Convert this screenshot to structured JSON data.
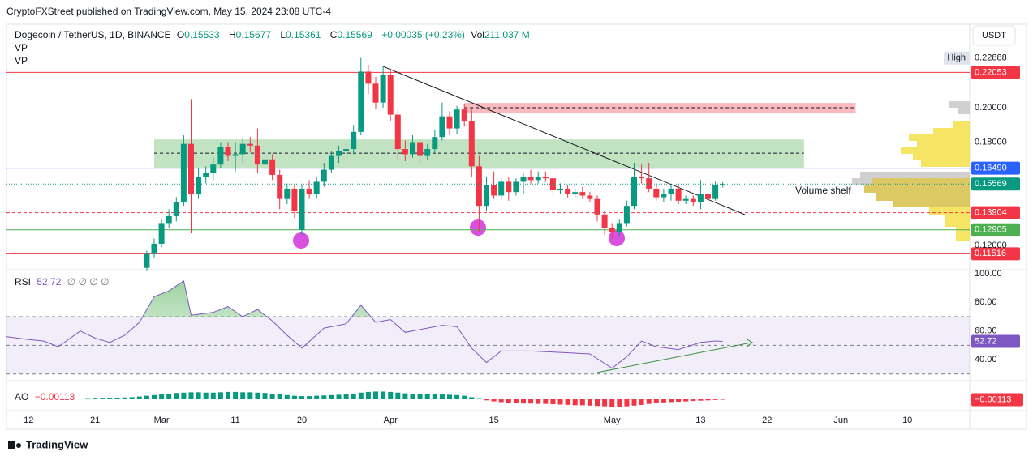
{
  "header": {
    "published": "CryptoFXStreet published on TradingView.com, May 15, 2024 23:08 UTC-4",
    "currency": "USDT",
    "footer": "TradingView"
  },
  "chart_data": [
    {
      "type": "candlestick",
      "title": "Dogecoin / TetherUS, 1D, BINANCE",
      "ohlc_letters": [
        "O",
        "H",
        "L",
        "C"
      ],
      "change": "+0.00035 (+0.23%)",
      "volume_title": "Vol",
      "volume": "211.037 M",
      "indicators": [
        "VP",
        "VP"
      ],
      "x": [
        "2024-02-28",
        "2024-02-29",
        "2024-03-01",
        "2024-03-02",
        "2024-03-03",
        "2024-03-04",
        "2024-03-05",
        "2024-03-06",
        "2024-03-07",
        "2024-03-08",
        "2024-03-09",
        "2024-03-10",
        "2024-03-11",
        "2024-03-12",
        "2024-03-13",
        "2024-03-14",
        "2024-03-15",
        "2024-03-16",
        "2024-03-17",
        "2024-03-18",
        "2024-03-19",
        "2024-03-20",
        "2024-03-21",
        "2024-03-22",
        "2024-03-23",
        "2024-03-24",
        "2024-03-25",
        "2024-03-26",
        "2024-03-27",
        "2024-03-28",
        "2024-03-29",
        "2024-03-30",
        "2024-03-31",
        "2024-04-01",
        "2024-04-02",
        "2024-04-03",
        "2024-04-04",
        "2024-04-05",
        "2024-04-06",
        "2024-04-07",
        "2024-04-08",
        "2024-04-09",
        "2024-04-10",
        "2024-04-11",
        "2024-04-12",
        "2024-04-13",
        "2024-04-14",
        "2024-04-15",
        "2024-04-16",
        "2024-04-17",
        "2024-04-18",
        "2024-04-19",
        "2024-04-20",
        "2024-04-21",
        "2024-04-22",
        "2024-04-23",
        "2024-04-24",
        "2024-04-25",
        "2024-04-26",
        "2024-04-27",
        "2024-04-28",
        "2024-04-29",
        "2024-04-30",
        "2024-05-01",
        "2024-05-02",
        "2024-05-03",
        "2024-05-04",
        "2024-05-05",
        "2024-05-06",
        "2024-05-07",
        "2024-05-08",
        "2024-05-09",
        "2024-05-10",
        "2024-05-11",
        "2024-05-12",
        "2024-05-13",
        "2024-05-14",
        "2024-05-15",
        "2024-05-16"
      ],
      "open": [
        0.107,
        0.115,
        0.121,
        0.133,
        0.137,
        0.145,
        0.179,
        0.15,
        0.16,
        0.162,
        0.167,
        0.177,
        0.172,
        0.173,
        0.179,
        0.178,
        0.167,
        0.17,
        0.161,
        0.147,
        0.153,
        0.129,
        0.153,
        0.15,
        0.157,
        0.164,
        0.172,
        0.175,
        0.176,
        0.186,
        0.221,
        0.214,
        0.203,
        0.219,
        0.196,
        0.176,
        0.173,
        0.18,
        0.172,
        0.176,
        0.183,
        0.195,
        0.188,
        0.199,
        0.192,
        0.166,
        0.143,
        0.155,
        0.149,
        0.157,
        0.151,
        0.157,
        0.16,
        0.158,
        0.16,
        0.159,
        0.152,
        0.153,
        0.15,
        0.151,
        0.149,
        0.147,
        0.138,
        0.13,
        0.128,
        0.133,
        0.143,
        0.16,
        0.159,
        0.153,
        0.148,
        0.15,
        0.153,
        0.146,
        0.147,
        0.145,
        0.15,
        0.147,
        0.15533
      ],
      "high": [
        0.117,
        0.124,
        0.135,
        0.141,
        0.148,
        0.184,
        0.205,
        0.165,
        0.166,
        0.171,
        0.18,
        0.18,
        0.18,
        0.182,
        0.183,
        0.188,
        0.177,
        0.173,
        0.164,
        0.156,
        0.155,
        0.155,
        0.158,
        0.16,
        0.168,
        0.175,
        0.178,
        0.18,
        0.19,
        0.2289,
        0.225,
        0.218,
        0.224,
        0.222,
        0.199,
        0.181,
        0.184,
        0.182,
        0.179,
        0.187,
        0.203,
        0.198,
        0.201,
        0.202,
        0.199,
        0.172,
        0.16,
        0.163,
        0.159,
        0.16,
        0.159,
        0.162,
        0.164,
        0.163,
        0.163,
        0.161,
        0.156,
        0.155,
        0.153,
        0.154,
        0.151,
        0.149,
        0.14,
        0.133,
        0.135,
        0.146,
        0.168,
        0.167,
        0.168,
        0.156,
        0.153,
        0.155,
        0.155,
        0.149,
        0.149,
        0.158,
        0.152,
        0.157,
        0.15677
      ],
      "low": [
        0.105,
        0.113,
        0.119,
        0.13,
        0.134,
        0.143,
        0.127,
        0.147,
        0.156,
        0.158,
        0.165,
        0.169,
        0.163,
        0.168,
        0.174,
        0.162,
        0.16,
        0.158,
        0.141,
        0.144,
        0.136,
        0.126,
        0.147,
        0.147,
        0.154,
        0.162,
        0.168,
        0.171,
        0.173,
        0.184,
        0.208,
        0.199,
        0.2,
        0.192,
        0.17,
        0.169,
        0.171,
        0.167,
        0.17,
        0.174,
        0.181,
        0.184,
        0.185,
        0.189,
        0.16,
        0.128,
        0.14,
        0.147,
        0.146,
        0.146,
        0.149,
        0.15,
        0.156,
        0.156,
        0.157,
        0.15,
        0.15,
        0.148,
        0.148,
        0.147,
        0.145,
        0.134,
        0.126,
        0.124,
        0.125,
        0.131,
        0.141,
        0.156,
        0.151,
        0.146,
        0.145,
        0.146,
        0.144,
        0.144,
        0.143,
        0.141,
        0.145,
        0.146,
        0.15361
      ],
      "close": [
        0.115,
        0.121,
        0.133,
        0.137,
        0.145,
        0.179,
        0.15,
        0.16,
        0.162,
        0.167,
        0.177,
        0.172,
        0.173,
        0.179,
        0.178,
        0.167,
        0.17,
        0.161,
        0.147,
        0.153,
        0.14,
        0.153,
        0.15,
        0.157,
        0.164,
        0.172,
        0.175,
        0.176,
        0.186,
        0.221,
        0.214,
        0.203,
        0.219,
        0.196,
        0.176,
        0.173,
        0.18,
        0.172,
        0.176,
        0.183,
        0.195,
        0.188,
        0.199,
        0.192,
        0.166,
        0.143,
        0.155,
        0.149,
        0.157,
        0.151,
        0.157,
        0.16,
        0.158,
        0.16,
        0.159,
        0.152,
        0.153,
        0.15,
        0.151,
        0.149,
        0.147,
        0.138,
        0.13,
        0.128,
        0.133,
        0.143,
        0.16,
        0.159,
        0.153,
        0.148,
        0.15,
        0.153,
        0.146,
        0.147,
        0.145,
        0.15,
        0.147,
        0.1553,
        0.15569
      ],
      "up_color": "#089981",
      "down_color": "#f23645",
      "xlim": [
        "2024-02-09",
        "2024-06-18"
      ],
      "xticks": [
        {
          "value": "2024-02-12",
          "label": "12"
        },
        {
          "value": "2024-02-21",
          "label": "21"
        },
        {
          "value": "2024-03-01",
          "label": "Mar"
        },
        {
          "value": "2024-03-11",
          "label": "11"
        },
        {
          "value": "2024-03-20",
          "label": "20"
        },
        {
          "value": "2024-04-01",
          "label": "Apr"
        },
        {
          "value": "2024-04-15",
          "label": "15"
        },
        {
          "value": "2024-05-01",
          "label": "May"
        },
        {
          "value": "2024-05-13",
          "label": "13"
        },
        {
          "value": "2024-05-22",
          "label": "22"
        },
        {
          "value": "2024-06-01",
          "label": "Jun"
        },
        {
          "value": "2024-06-10",
          "label": "10"
        }
      ],
      "ylim": [
        0.1059,
        0.2485
      ],
      "yticks": [
        {
          "value": 0.12,
          "label": "0.12000"
        },
        {
          "value": 0.18,
          "label": "0.18000"
        },
        {
          "value": 0.2,
          "label": "0.20000"
        }
      ],
      "grid": false,
      "levels": [
        {
          "value": 0.22053,
          "color": "#f23645",
          "dashed": false
        },
        {
          "value": 0.1649,
          "label": "0.16490",
          "color": "#2962ff",
          "dashed": false
        },
        {
          "value": 0.13904,
          "color": "#f23645",
          "dashed": true
        },
        {
          "value": 0.12905,
          "color": "#4caf50",
          "dashed": false
        },
        {
          "value": 0.11516,
          "color": "#f23645",
          "dashed": false
        }
      ],
      "high_marker": {
        "label": "High",
        "value": 0.22888
      },
      "zones": [
        {
          "from": 0.1649,
          "to": 0.1816,
          "mid": 0.1736,
          "x": [
            "2024-02-29",
            "2024-05-27"
          ],
          "color": "#4caf50"
        },
        {
          "from": 0.1967,
          "to": 0.2028,
          "mid": 0.2,
          "x": [
            "2024-04-11",
            "2024-06-03"
          ],
          "color": "#f23645"
        }
      ],
      "trendline": {
        "x": [
          "2024-03-31",
          "2024-05-19"
        ],
        "y": [
          0.224,
          0.1379
        ],
        "color": "#131722"
      },
      "annotation": "Volume shelf"
    },
    {
      "type": "line",
      "title": "RSI",
      "inputs": "∅ ∅ ∅ ∅",
      "x": [
        "2024-02-09",
        "2024-02-12",
        "2024-02-14",
        "2024-02-16",
        "2024-02-19",
        "2024-02-21",
        "2024-02-23",
        "2024-02-25",
        "2024-02-27",
        "2024-02-29",
        "2024-03-02",
        "2024-03-04",
        "2024-03-05",
        "2024-03-08",
        "2024-03-10",
        "2024-03-12",
        "2024-03-14",
        "2024-03-16",
        "2024-03-18",
        "2024-03-20",
        "2024-03-23",
        "2024-03-26",
        "2024-03-28",
        "2024-03-30",
        "2024-04-01",
        "2024-04-03",
        "2024-04-05",
        "2024-04-08",
        "2024-04-10",
        "2024-04-12",
        "2024-04-14",
        "2024-04-16",
        "2024-04-20",
        "2024-04-24",
        "2024-04-28",
        "2024-05-01",
        "2024-05-03",
        "2024-05-05",
        "2024-05-07",
        "2024-05-10",
        "2024-05-13",
        "2024-05-15",
        "2024-05-16"
      ],
      "values": [
        56,
        54,
        53,
        49,
        60,
        55,
        52,
        57,
        66,
        84,
        88,
        95,
        71,
        73,
        77,
        70,
        75,
        67,
        57,
        48,
        62,
        65,
        78,
        66,
        68,
        59,
        61,
        64,
        63,
        48,
        38,
        46,
        46,
        45,
        44,
        34,
        42,
        53,
        49,
        47,
        52,
        53,
        52.72
      ],
      "color": "#7e57c2",
      "ylim": [
        25.3,
        102.8
      ],
      "yticks": [
        {
          "value": 40,
          "label": "40.00"
        },
        {
          "value": 60,
          "label": "60.00"
        },
        {
          "value": 80,
          "label": "80.00"
        },
        {
          "value": 100,
          "label": "100.00"
        }
      ],
      "bands": [
        70,
        50,
        30
      ],
      "overbought_color": "#4caf50",
      "trendline": {
        "x": [
          "2024-04-29",
          "2024-05-20"
        ],
        "y": [
          31,
          52
        ],
        "color": "#388e3c"
      }
    },
    {
      "type": "bar",
      "title": "AO",
      "last_value_label": "−0.00113",
      "x": [
        "2024-02-20",
        "2024-02-21",
        "2024-02-22",
        "2024-02-23",
        "2024-02-24",
        "2024-02-25",
        "2024-02-26",
        "2024-02-27",
        "2024-02-28",
        "2024-02-29",
        "2024-03-01",
        "2024-03-02",
        "2024-03-03",
        "2024-03-04",
        "2024-03-05",
        "2024-03-06",
        "2024-03-07",
        "2024-03-08",
        "2024-03-09",
        "2024-03-10",
        "2024-03-11",
        "2024-03-12",
        "2024-03-13",
        "2024-03-14",
        "2024-03-15",
        "2024-03-16",
        "2024-03-17",
        "2024-03-18",
        "2024-03-19",
        "2024-03-20",
        "2024-03-21",
        "2024-03-22",
        "2024-03-23",
        "2024-03-24",
        "2024-03-25",
        "2024-03-26",
        "2024-03-27",
        "2024-03-28",
        "2024-03-29",
        "2024-03-30",
        "2024-03-31",
        "2024-04-01",
        "2024-04-02",
        "2024-04-03",
        "2024-04-04",
        "2024-04-05",
        "2024-04-06",
        "2024-04-07",
        "2024-04-08",
        "2024-04-09",
        "2024-04-10",
        "2024-04-11",
        "2024-04-12",
        "2024-04-13",
        "2024-04-14",
        "2024-04-15",
        "2024-04-16",
        "2024-04-17",
        "2024-04-18",
        "2024-04-19",
        "2024-04-20",
        "2024-04-21",
        "2024-04-22",
        "2024-04-23",
        "2024-04-24",
        "2024-04-25",
        "2024-04-26",
        "2024-04-27",
        "2024-04-28",
        "2024-04-29",
        "2024-04-30",
        "2024-05-01",
        "2024-05-02",
        "2024-05-03",
        "2024-05-04",
        "2024-05-05",
        "2024-05-06",
        "2024-05-07",
        "2024-05-08",
        "2024-05-09",
        "2024-05-10",
        "2024-05-11",
        "2024-05-12",
        "2024-05-13",
        "2024-05-14",
        "2024-05-15",
        "2024-05-16"
      ],
      "values": [
        0.001,
        0.002,
        0.002,
        0.003,
        0.004,
        0.005,
        0.006,
        0.008,
        0.01,
        0.012,
        0.014,
        0.016,
        0.018,
        0.019,
        0.02,
        0.02,
        0.019,
        0.019,
        0.02,
        0.021,
        0.021,
        0.02,
        0.02,
        0.019,
        0.018,
        0.016,
        0.014,
        0.012,
        0.01,
        0.009,
        0.009,
        0.01,
        0.011,
        0.012,
        0.013,
        0.014,
        0.016,
        0.019,
        0.021,
        0.022,
        0.022,
        0.021,
        0.019,
        0.017,
        0.016,
        0.015,
        0.014,
        0.014,
        0.014,
        0.013,
        0.012,
        0.01,
        0.006,
        0.001,
        -0.003,
        -0.006,
        -0.008,
        -0.01,
        -0.011,
        -0.012,
        -0.012,
        -0.013,
        -0.013,
        -0.014,
        -0.015,
        -0.016,
        -0.017,
        -0.017,
        -0.018,
        -0.019,
        -0.02,
        -0.021,
        -0.021,
        -0.02,
        -0.018,
        -0.016,
        -0.013,
        -0.011,
        -0.009,
        -0.008,
        -0.007,
        -0.006,
        -0.005,
        -0.004,
        -0.003,
        -0.002,
        -0.00113
      ],
      "pos_color": "#089981",
      "neg_color": "#f23645",
      "ylim": [
        -0.03,
        0.03
      ]
    }
  ]
}
